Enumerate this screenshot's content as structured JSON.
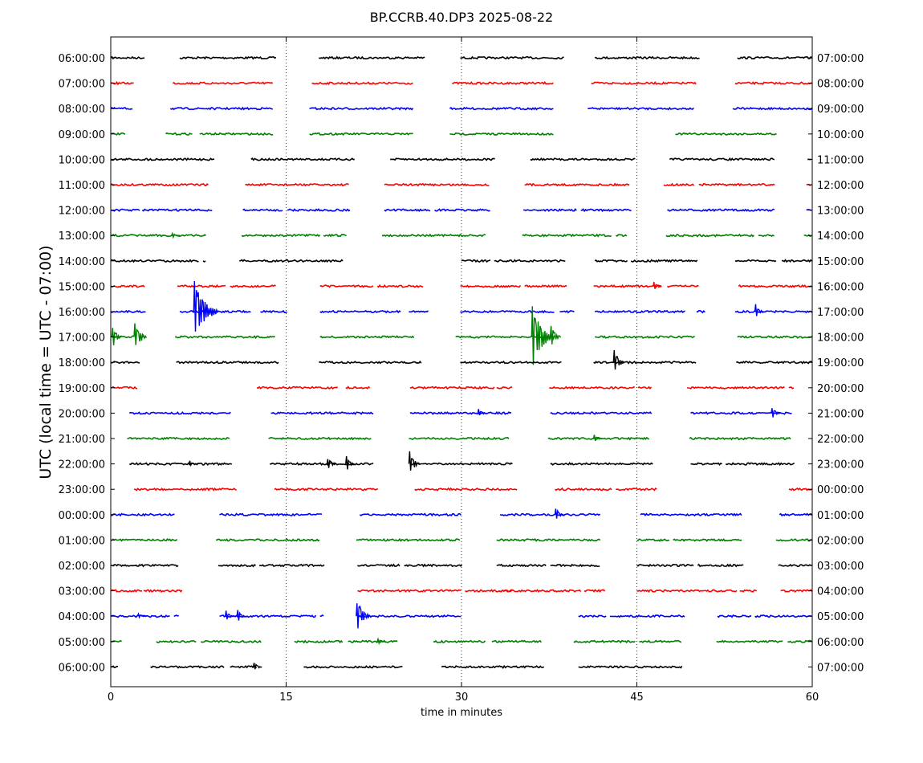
{
  "chart_data": {
    "type": "line",
    "title": "BP.CCRB.40.DP3 2025-08-22",
    "xlabel": "time in minutes",
    "ylabel": "UTC (local time = UTC - 07:00)",
    "xlim": [
      0,
      60
    ],
    "x_ticks": [
      0,
      15,
      30,
      45,
      60
    ],
    "grid_x": [
      15,
      30,
      45
    ],
    "grid": "vertical dotted lines",
    "colors": [
      "#000000",
      "#ff0000",
      "#0000ff",
      "#008000"
    ],
    "left_labels": [
      "06:00:00",
      "07:00:00",
      "08:00:00",
      "09:00:00",
      "10:00:00",
      "11:00:00",
      "12:00:00",
      "13:00:00",
      "14:00:00",
      "15:00:00",
      "16:00:00",
      "17:00:00",
      "18:00:00",
      "19:00:00",
      "20:00:00",
      "21:00:00",
      "22:00:00",
      "23:00:00",
      "00:00:00",
      "01:00:00",
      "02:00:00",
      "03:00:00",
      "04:00:00",
      "05:00:00",
      "06:00:00"
    ],
    "right_labels": [
      "07:00:00",
      "08:00:00",
      "09:00:00",
      "10:00:00",
      "11:00:00",
      "12:00:00",
      "13:00:00",
      "14:00:00",
      "15:00:00",
      "16:00:00",
      "17:00:00",
      "18:00:00",
      "19:00:00",
      "20:00:00",
      "21:00:00",
      "22:00:00",
      "23:00:00",
      "00:00:00",
      "01:00:00",
      "02:00:00",
      "03:00:00",
      "04:00:00",
      "05:00:00",
      "06:00:00",
      "07:00:00"
    ],
    "rows": [
      {
        "segments": [
          [
            0,
            2.9
          ],
          [
            5.9,
            14.2
          ],
          [
            17.8,
            26.9
          ],
          [
            29.9,
            38.8
          ],
          [
            41.4,
            50.4
          ],
          [
            53.6,
            60
          ]
        ],
        "events": []
      },
      {
        "segments": [
          [
            0,
            2.0
          ],
          [
            5.3,
            13.9
          ],
          [
            17.2,
            25.9
          ],
          [
            29.2,
            37.9
          ],
          [
            41.1,
            50.1
          ],
          [
            53.4,
            60
          ]
        ],
        "events": []
      },
      {
        "segments": [
          [
            0,
            1.9
          ],
          [
            5.1,
            13.9
          ],
          [
            17.0,
            25.9
          ],
          [
            29.0,
            37.9
          ],
          [
            40.8,
            49.9
          ],
          [
            53.2,
            60
          ]
        ],
        "events": []
      },
      {
        "segments": [
          [
            0,
            1.3
          ],
          [
            4.7,
            7.0
          ],
          [
            7.6,
            13.9
          ],
          [
            17.0,
            25.9
          ],
          [
            29.0,
            37.9
          ],
          [
            48.3,
            57.0
          ]
        ],
        "events": []
      },
      {
        "segments": [
          [
            0,
            8.9
          ],
          [
            12.0,
            20.9
          ],
          [
            23.9,
            32.9
          ],
          [
            35.9,
            44.9
          ],
          [
            47.8,
            56.8
          ],
          [
            59.6,
            60
          ]
        ],
        "events": []
      },
      {
        "segments": [
          [
            0,
            8.4
          ],
          [
            11.5,
            20.4
          ],
          [
            23.4,
            32.4
          ],
          [
            35.4,
            44.4
          ],
          [
            47.3,
            49.9
          ],
          [
            50.3,
            56.8
          ],
          [
            59.5,
            60
          ]
        ],
        "events": []
      },
      {
        "segments": [
          [
            0,
            2.5
          ],
          [
            2.7,
            8.7
          ],
          [
            11.3,
            14.7
          ],
          [
            15.1,
            20.5
          ],
          [
            23.4,
            27.4
          ],
          [
            27.7,
            32.5
          ],
          [
            35.3,
            39.9
          ],
          [
            40.2,
            44.6
          ],
          [
            47.6,
            56.8
          ],
          [
            59.5,
            60
          ]
        ],
        "events": []
      },
      {
        "segments": [
          [
            0,
            8.2
          ],
          [
            11.2,
            17.9
          ],
          [
            18.2,
            20.2
          ],
          [
            23.2,
            32.1
          ],
          [
            35.2,
            42.9
          ],
          [
            43.2,
            44.2
          ],
          [
            47.5,
            55.1
          ],
          [
            55.4,
            56.8
          ],
          [
            59.3,
            60
          ]
        ],
        "events": [
          {
            "x": 5.4,
            "amp": 0.1
          }
        ]
      },
      {
        "segments": [
          [
            0,
            7.6
          ],
          [
            7.9,
            8.2
          ],
          [
            11.0,
            19.9
          ],
          [
            30.0,
            32.5
          ],
          [
            32.8,
            38.9
          ],
          [
            41.4,
            44.2
          ],
          [
            44.5,
            50.2
          ],
          [
            53.4,
            57.0
          ],
          [
            57.4,
            60
          ]
        ],
        "events": []
      },
      {
        "segments": [
          [
            0,
            2.9
          ],
          [
            5.7,
            9.9
          ],
          [
            10.2,
            14.2
          ],
          [
            17.9,
            22.5
          ],
          [
            22.8,
            26.8
          ],
          [
            29.9,
            35.1
          ],
          [
            35.4,
            39.1
          ],
          [
            41.3,
            47.1
          ],
          [
            47.6,
            50.3
          ],
          [
            53.7,
            60
          ]
        ],
        "events": [
          {
            "x": 46.6,
            "amp": 0.18
          }
        ]
      },
      {
        "segments": [
          [
            0,
            3.0
          ],
          [
            5.9,
            12.0
          ],
          [
            12.8,
            15.1
          ],
          [
            17.9,
            24.9
          ],
          [
            25.5,
            27.2
          ],
          [
            29.9,
            38.0
          ],
          [
            38.4,
            39.7
          ],
          [
            41.4,
            49.2
          ],
          [
            50.1,
            50.9
          ],
          [
            53.4,
            60
          ]
        ],
        "events": [
          {
            "x": 7.3,
            "amp": 1.35
          },
          {
            "x": 55.3,
            "amp": 0.32
          }
        ]
      },
      {
        "segments": [
          [
            0,
            2.0
          ],
          [
            2.7,
            2.9
          ],
          [
            5.5,
            14.1
          ],
          [
            17.9,
            26.0
          ],
          [
            29.5,
            38.0
          ],
          [
            41.4,
            50.0
          ],
          [
            53.6,
            60
          ]
        ],
        "events": [
          {
            "x": 0.3,
            "amp": 0.5
          },
          {
            "x": 2.2,
            "amp": 0.7
          },
          {
            "x": 36.2,
            "amp": 1.3
          },
          {
            "x": 37.8,
            "amp": 0.55
          }
        ]
      },
      {
        "segments": [
          [
            0,
            2.5
          ],
          [
            5.6,
            14.4
          ],
          [
            17.8,
            26.6
          ],
          [
            29.9,
            38.6
          ],
          [
            41.3,
            50.1
          ],
          [
            53.5,
            60
          ]
        ],
        "events": [
          {
            "x": 43.2,
            "amp": 0.58
          }
        ]
      },
      {
        "segments": [
          [
            0,
            2.3
          ],
          [
            12.5,
            19.5
          ],
          [
            20.1,
            22.2
          ],
          [
            25.6,
            32.9
          ],
          [
            33.0,
            34.4
          ],
          [
            37.5,
            44.9
          ],
          [
            45.1,
            46.3
          ],
          [
            49.3,
            57.7
          ],
          [
            58.0,
            58.5
          ]
        ],
        "events": []
      },
      {
        "segments": [
          [
            1.6,
            10.3
          ],
          [
            13.7,
            22.5
          ],
          [
            25.6,
            34.3
          ],
          [
            37.6,
            46.3
          ],
          [
            49.6,
            58.3
          ]
        ],
        "events": [
          {
            "x": 31.6,
            "amp": 0.2
          },
          {
            "x": 56.7,
            "amp": 0.28
          }
        ]
      },
      {
        "segments": [
          [
            1.4,
            10.2
          ],
          [
            13.5,
            22.3
          ],
          [
            25.5,
            34.1
          ],
          [
            37.4,
            46.1
          ],
          [
            49.5,
            58.2
          ]
        ],
        "events": [
          {
            "x": 41.5,
            "amp": 0.16
          }
        ]
      },
      {
        "segments": [
          [
            1.6,
            10.4
          ],
          [
            13.6,
            22.5
          ],
          [
            25.6,
            34.4
          ],
          [
            37.6,
            46.4
          ],
          [
            49.6,
            52.3
          ],
          [
            52.6,
            58.5
          ]
        ],
        "events": [
          {
            "x": 6.9,
            "amp": 0.12
          },
          {
            "x": 18.7,
            "amp": 0.32
          },
          {
            "x": 20.3,
            "amp": 0.35
          },
          {
            "x": 25.7,
            "amp": 0.58
          }
        ]
      },
      {
        "segments": [
          [
            2.0,
            10.8
          ],
          [
            14.0,
            22.9
          ],
          [
            26.0,
            34.8
          ],
          [
            38.0,
            42.9
          ],
          [
            43.2,
            46.8
          ],
          [
            58.0,
            60
          ]
        ],
        "events": []
      },
      {
        "segments": [
          [
            0,
            5.5
          ],
          [
            9.3,
            18.1
          ],
          [
            21.3,
            30.0
          ],
          [
            33.3,
            41.9
          ],
          [
            45.3,
            54.0
          ],
          [
            57.2,
            60
          ]
        ],
        "events": [
          {
            "x": 38.2,
            "amp": 0.32
          }
        ]
      },
      {
        "segments": [
          [
            0,
            5.7
          ],
          [
            9.0,
            17.9
          ],
          [
            21.0,
            29.9
          ],
          [
            33.0,
            41.9
          ],
          [
            45.0,
            47.8
          ],
          [
            48.1,
            54.0
          ],
          [
            56.9,
            60
          ]
        ],
        "events": []
      },
      {
        "segments": [
          [
            0,
            5.8
          ],
          [
            9.2,
            12.4
          ],
          [
            12.7,
            18.3
          ],
          [
            21.1,
            24.8
          ],
          [
            25.1,
            30.1
          ],
          [
            33.0,
            37.3
          ],
          [
            37.6,
            41.9
          ],
          [
            45.0,
            49.9
          ],
          [
            50.2,
            54.2
          ],
          [
            57.1,
            60
          ]
        ],
        "events": []
      },
      {
        "segments": [
          [
            0,
            2.7
          ],
          [
            2.8,
            6.1
          ],
          [
            21.1,
            30.0
          ],
          [
            30.3,
            34.5
          ],
          [
            33.2,
            40.3
          ],
          [
            40.5,
            42.3
          ],
          [
            45.0,
            53.6
          ],
          [
            53.8,
            55.3
          ],
          [
            57.3,
            60
          ]
        ],
        "events": []
      },
      {
        "segments": [
          [
            0,
            5.1
          ],
          [
            5.4,
            5.9
          ],
          [
            9.3,
            17.6
          ],
          [
            17.9,
            18.3
          ],
          [
            21.1,
            30.0
          ],
          [
            40.0,
            42.4
          ],
          [
            42.7,
            49.1
          ],
          [
            51.9,
            54.8
          ],
          [
            55.1,
            60
          ]
        ],
        "events": [
          {
            "x": 2.5,
            "amp": 0.1
          },
          {
            "x": 10.0,
            "amp": 0.22
          },
          {
            "x": 11.0,
            "amp": 0.25
          },
          {
            "x": 21.2,
            "amp": 0.75
          }
        ]
      },
      {
        "segments": [
          [
            0,
            1.0
          ],
          [
            3.9,
            7.4
          ],
          [
            7.7,
            12.9
          ],
          [
            15.7,
            19.9
          ],
          [
            20.3,
            24.6
          ],
          [
            27.6,
            32.1
          ],
          [
            32.6,
            36.9
          ],
          [
            39.6,
            44.9
          ],
          [
            45.2,
            48.9
          ],
          [
            51.8,
            57.5
          ],
          [
            57.9,
            60
          ]
        ],
        "events": [
          {
            "x": 23.0,
            "amp": 0.12
          }
        ]
      },
      {
        "segments": [
          [
            0,
            0.7
          ],
          [
            3.4,
            9.7
          ],
          [
            10.2,
            12.5
          ],
          [
            16.5,
            25.0
          ],
          [
            28.3,
            37.1
          ],
          [
            40.0,
            48.9
          ]
        ],
        "events": [
          {
            "x": 12.4,
            "amp": 0.18
          }
        ]
      }
    ]
  }
}
